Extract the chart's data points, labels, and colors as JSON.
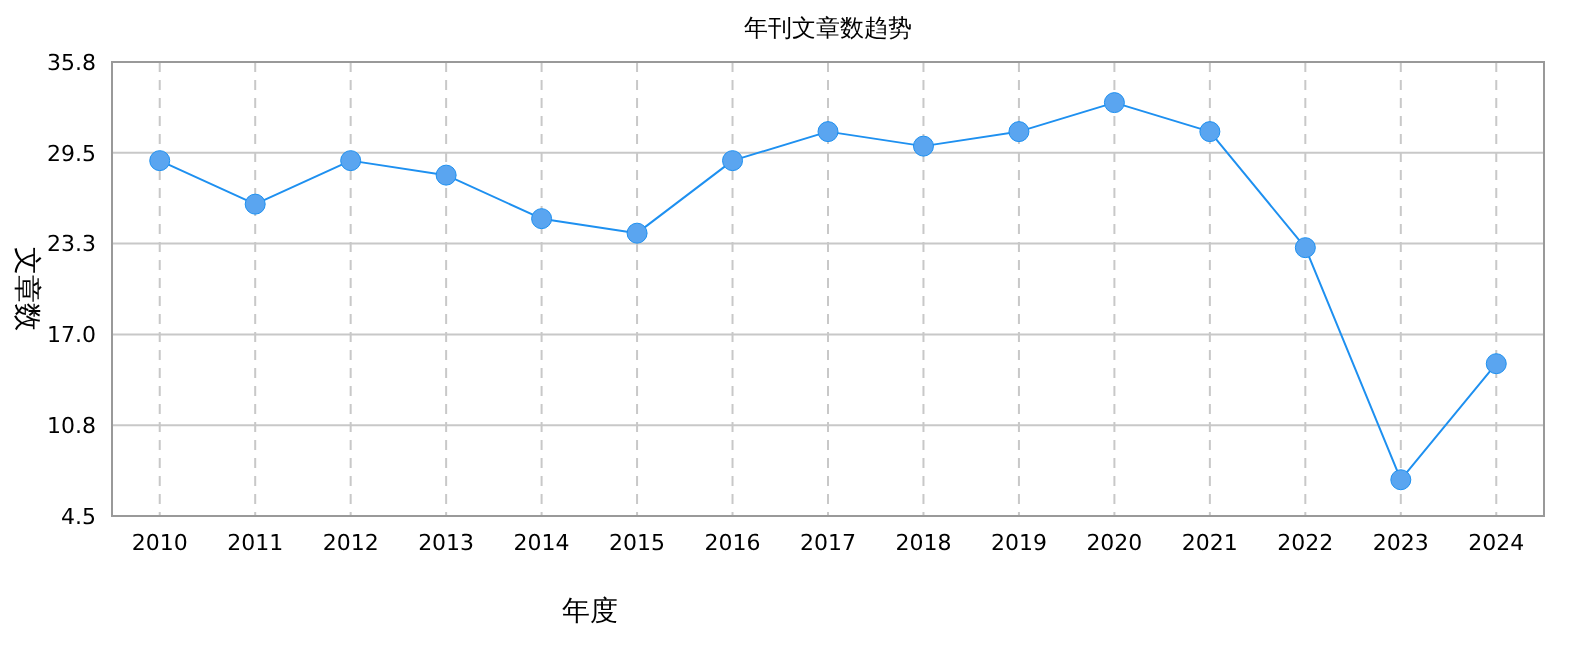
{
  "chart_data": {
    "type": "line",
    "title": "年刊文章数趋势",
    "xlabel": "年度",
    "ylabel": "文章数",
    "categories": [
      "2010",
      "2011",
      "2012",
      "2013",
      "2014",
      "2015",
      "2016",
      "2017",
      "2018",
      "2019",
      "2020",
      "2021",
      "2022",
      "2023",
      "2024"
    ],
    "series": [
      {
        "color": "#1e90f0",
        "values": [
          29,
          26,
          29,
          28,
          25,
          24,
          29,
          31,
          30,
          31,
          33,
          31,
          23,
          7,
          15
        ]
      }
    ],
    "ylim": [
      4.5,
      35.8
    ],
    "yticks": [
      4.5,
      {
        "value": 10.76,
        "label": "10.8"
      },
      {
        "value": 17.02,
        "label": "17.0"
      },
      {
        "value": 23.28,
        "label": "23.3"
      },
      {
        "value": 29.54,
        "label": "29.5"
      },
      35.8
    ],
    "grid": true,
    "marker": "circle",
    "line_style": "solid"
  }
}
